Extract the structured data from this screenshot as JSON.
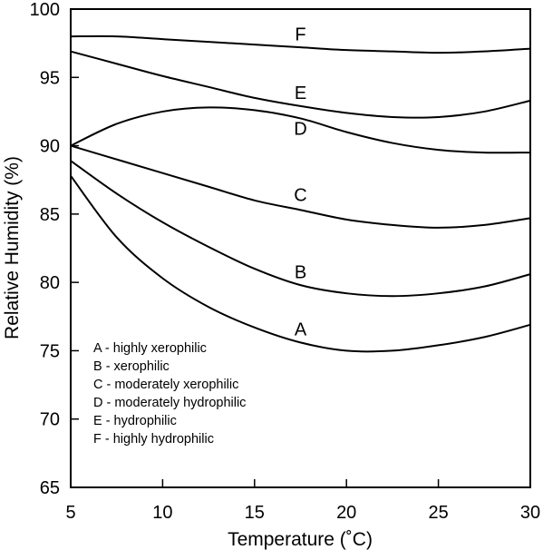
{
  "chart_data": {
    "type": "line",
    "title": "",
    "xlabel": "Temperature (˚C)",
    "ylabel": "Relative Humidity (%)",
    "xlim": [
      5,
      30
    ],
    "ylim": [
      65,
      100
    ],
    "x_ticks": [
      "5",
      "10",
      "15",
      "20",
      "25",
      "30"
    ],
    "y_ticks": [
      "65",
      "70",
      "75",
      "80",
      "85",
      "90",
      "95",
      "100"
    ],
    "grid": false,
    "line_color": "#000000",
    "legend_position": "bottom-left",
    "legend": [
      "A - highly xerophilic",
      "B - xerophilic",
      "C - moderately xerophilic",
      "D - moderately hydrophilic",
      "E - hydrophilic",
      "F - highly hydrophilic"
    ],
    "series": [
      {
        "name": "A",
        "x": [
          5,
          7.5,
          10,
          12.5,
          15,
          17.5,
          20,
          22.5,
          25,
          27.5,
          30
        ],
        "y": [
          87.8,
          83.3,
          80.3,
          78.2,
          76.7,
          75.6,
          75.0,
          75.0,
          75.4,
          76.0,
          76.9
        ]
      },
      {
        "name": "B",
        "x": [
          5,
          7.5,
          10,
          12.5,
          15,
          17.5,
          20,
          22.5,
          25,
          27.5,
          30
        ],
        "y": [
          88.9,
          86.5,
          84.4,
          82.6,
          81.0,
          79.8,
          79.2,
          79.0,
          79.2,
          79.7,
          80.6
        ]
      },
      {
        "name": "C",
        "x": [
          5,
          7.5,
          10,
          12.5,
          15,
          17.5,
          20,
          22.5,
          25,
          27.5,
          30
        ],
        "y": [
          90.0,
          89.0,
          88.0,
          87.0,
          86.0,
          85.3,
          84.6,
          84.2,
          84.0,
          84.2,
          84.7
        ]
      },
      {
        "name": "D",
        "x": [
          5,
          7.5,
          10,
          12.5,
          15,
          17.5,
          20,
          22.5,
          25,
          27.5,
          30
        ],
        "y": [
          90.0,
          91.6,
          92.5,
          92.8,
          92.6,
          92.0,
          91.0,
          90.2,
          89.7,
          89.5,
          89.5
        ]
      },
      {
        "name": "E",
        "x": [
          5,
          7.5,
          10,
          12.5,
          15,
          17.5,
          20,
          22.5,
          25,
          27.5,
          30
        ],
        "y": [
          96.9,
          96.0,
          95.1,
          94.3,
          93.5,
          92.9,
          92.4,
          92.1,
          92.1,
          92.5,
          93.3
        ]
      },
      {
        "name": "F",
        "x": [
          5,
          7.5,
          10,
          12.5,
          15,
          17.5,
          20,
          22.5,
          25,
          27.5,
          30
        ],
        "y": [
          98.0,
          98.0,
          97.8,
          97.6,
          97.4,
          97.2,
          97.0,
          96.9,
          96.8,
          96.9,
          97.1
        ]
      }
    ]
  }
}
